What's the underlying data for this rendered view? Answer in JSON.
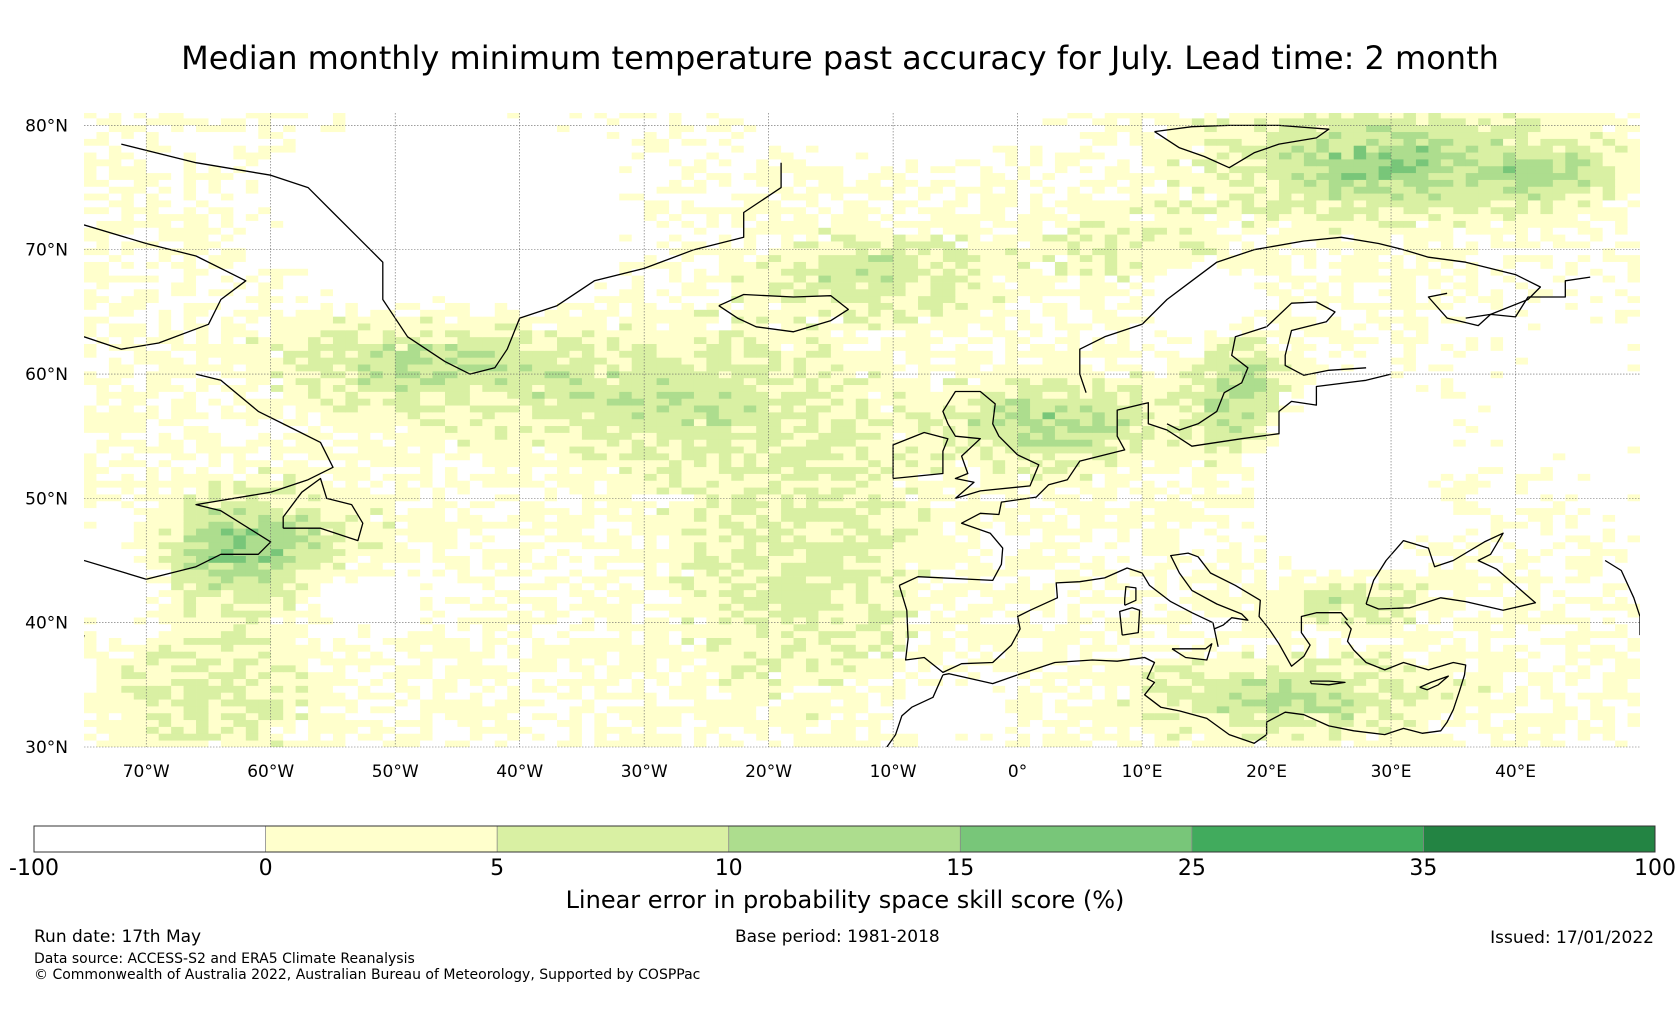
{
  "title": "Median monthly minimum temperature past accuracy for July. Lead time: 2 month",
  "map": {
    "lon_range": [
      -75,
      50
    ],
    "lat_range": [
      30,
      81
    ],
    "lat_ticks": [
      {
        "value": 30,
        "label": "30°N"
      },
      {
        "value": 40,
        "label": "40°N"
      },
      {
        "value": 50,
        "label": "50°N"
      },
      {
        "value": 60,
        "label": "60°N"
      },
      {
        "value": 70,
        "label": "70°N"
      },
      {
        "value": 80,
        "label": "80°N"
      }
    ],
    "lon_ticks": [
      {
        "value": -70,
        "label": "70°W"
      },
      {
        "value": -60,
        "label": "60°W"
      },
      {
        "value": -50,
        "label": "50°W"
      },
      {
        "value": -40,
        "label": "40°W"
      },
      {
        "value": -30,
        "label": "30°W"
      },
      {
        "value": -20,
        "label": "20°W"
      },
      {
        "value": -10,
        "label": "10°W"
      },
      {
        "value": 0,
        "label": "0°"
      },
      {
        "value": 10,
        "label": "10°E"
      },
      {
        "value": 20,
        "label": "20°E"
      },
      {
        "value": 30,
        "label": "30°E"
      },
      {
        "value": 40,
        "label": "40°E"
      }
    ],
    "gridlines": true
  },
  "colorbar": {
    "label": "Linear error in probability space skill score (%)",
    "bins": [
      {
        "from": "-100",
        "to": "0",
        "color": "#ffffff"
      },
      {
        "from": "0",
        "to": "5",
        "color": "#ffffcc"
      },
      {
        "from": "5",
        "to": "10",
        "color": "#d9f0a3"
      },
      {
        "from": "10",
        "to": "15",
        "color": "#addd8e"
      },
      {
        "from": "15",
        "to": "25",
        "color": "#78c679"
      },
      {
        "from": "25",
        "to": "35",
        "color": "#41ab5d"
      },
      {
        "from": "35",
        "to": "100",
        "color": "#238443"
      }
    ],
    "tick_labels": [
      "-100",
      "0",
      "5",
      "10",
      "15",
      "25",
      "35",
      "100"
    ]
  },
  "footer": {
    "run_date": "Run date: 17th May",
    "base_period": "Base period: 1981-2018",
    "issued": "Issued: 17/01/2022",
    "data_source": "Data source: ACCESS-S2 and ERA5 Climate Reanalysis",
    "copyright": "© Commonwealth of Australia 2022, Australian Bureau of Meteorology, Supported by COSPPac"
  }
}
